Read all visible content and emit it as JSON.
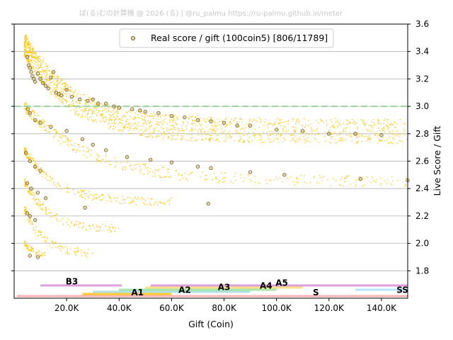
{
  "watermark": "ぱ(る)むの計算機 @ 2026 (る) | @ru_palmu  https://ru-palmu.github.io/meter",
  "chart_data": {
    "type": "scatter",
    "title": "",
    "xlabel": "Gift (Coin)",
    "ylabel": "Live Score / Gift",
    "xlim": [
      0,
      150000
    ],
    "ylim": [
      1.6,
      3.6
    ],
    "x_ticks": [
      20000,
      40000,
      60000,
      80000,
      100000,
      120000,
      140000
    ],
    "x_tick_labels": [
      "20.0K",
      "40.0K",
      "60.0K",
      "80.0K",
      "100.0K",
      "120.0K",
      "140.0K"
    ],
    "y_ticks": [
      1.8,
      2.0,
      2.2,
      2.4,
      2.6,
      2.8,
      3.0,
      3.2,
      3.4,
      3.6
    ],
    "y_tick_labels": [
      "1.8",
      "2.0",
      "2.2",
      "2.4",
      "2.6",
      "2.8",
      "3.0",
      "3.2",
      "3.4",
      "3.6"
    ],
    "y_axis_side": "right",
    "grid": "horizontal",
    "legend": {
      "position": "top-center",
      "label": "Real score / gift (100coin5) [806/11789]"
    },
    "reference_line": {
      "y": 3.0,
      "style": "dashed",
      "color": "#9bd49b"
    },
    "colors": {
      "background_points": "#ffc400",
      "real_points_edge": "#5a4a20"
    },
    "series": [
      {
        "name": "Real score / gift (100coin5) [806/11789]",
        "marker": "circle-hollow",
        "points": [
          [
            5000,
            3.36
          ],
          [
            5500,
            3.3
          ],
          [
            6000,
            3.28
          ],
          [
            6500,
            3.25
          ],
          [
            7000,
            3.22
          ],
          [
            7500,
            3.2
          ],
          [
            8000,
            3.18
          ],
          [
            9000,
            3.24
          ],
          [
            10000,
            3.2
          ],
          [
            11000,
            3.17
          ],
          [
            12000,
            3.15
          ],
          [
            13000,
            3.13
          ],
          [
            14000,
            3.21
          ],
          [
            15000,
            3.25
          ],
          [
            16000,
            3.1
          ],
          [
            17000,
            3.09
          ],
          [
            18000,
            3.08
          ],
          [
            20000,
            3.12
          ],
          [
            22000,
            3.07
          ],
          [
            25000,
            3.05
          ],
          [
            28000,
            3.04
          ],
          [
            30000,
            3.05
          ],
          [
            32000,
            3.02
          ],
          [
            35000,
            3.02
          ],
          [
            38000,
            3.0
          ],
          [
            40000,
            2.99
          ],
          [
            45000,
            2.98
          ],
          [
            48000,
            2.97
          ],
          [
            50000,
            2.96
          ],
          [
            55000,
            2.95
          ],
          [
            60000,
            2.93
          ],
          [
            65000,
            2.92
          ],
          [
            70000,
            2.9
          ],
          [
            75000,
            2.89
          ],
          [
            80000,
            2.88
          ],
          [
            85000,
            2.86
          ],
          [
            90000,
            2.86
          ],
          [
            100000,
            2.83
          ],
          [
            110000,
            2.82
          ],
          [
            120000,
            2.8
          ],
          [
            130000,
            2.8
          ],
          [
            140000,
            2.79
          ],
          [
            5200,
            2.98
          ],
          [
            6000,
            2.95
          ],
          [
            8000,
            2.9
          ],
          [
            10000,
            2.88
          ],
          [
            14000,
            2.85
          ],
          [
            20000,
            2.82
          ],
          [
            26000,
            2.76
          ],
          [
            30000,
            2.72
          ],
          [
            35000,
            2.68
          ],
          [
            43000,
            2.63
          ],
          [
            52000,
            2.61
          ],
          [
            60000,
            2.59
          ],
          [
            70000,
            2.56
          ],
          [
            75000,
            2.55
          ],
          [
            90000,
            2.52
          ],
          [
            103000,
            2.5
          ],
          [
            132000,
            2.47
          ],
          [
            150000,
            2.46
          ],
          [
            4500,
            2.66
          ],
          [
            6000,
            2.6
          ],
          [
            8000,
            2.56
          ],
          [
            10000,
            2.53
          ],
          [
            5000,
            2.44
          ],
          [
            6500,
            2.4
          ],
          [
            9000,
            2.37
          ],
          [
            12000,
            2.33
          ],
          [
            5000,
            2.22
          ],
          [
            6000,
            2.2
          ],
          [
            8000,
            2.17
          ],
          [
            6000,
            1.91
          ],
          [
            9000,
            1.9
          ],
          [
            27000,
            2.26
          ],
          [
            74000,
            2.29
          ]
        ]
      }
    ],
    "background_density": {
      "description_bands": [
        {
          "x_range": [
            4000,
            150000
          ],
          "y_from": 3.45,
          "y_to": 2.8,
          "density": "high"
        },
        {
          "x_range": [
            4000,
            150000
          ],
          "y_from": 3.0,
          "y_to": 2.45,
          "density": "medium"
        },
        {
          "x_range": [
            4000,
            60000
          ],
          "y_from": 2.7,
          "y_to": 2.3,
          "density": "low"
        },
        {
          "x_range": [
            4000,
            40000
          ],
          "y_from": 2.45,
          "y_to": 2.1,
          "density": "low"
        },
        {
          "x_range": [
            4000,
            30000
          ],
          "y_from": 2.25,
          "y_to": 1.9,
          "density": "low"
        },
        {
          "x_range": [
            4000,
            12000
          ],
          "y_from": 2.0,
          "y_to": 1.9,
          "density": "low"
        }
      ]
    },
    "rank_bands": [
      {
        "label": "B3",
        "x_start": 10000,
        "x_end": 41000,
        "color": "#dda0dd",
        "row": 0
      },
      {
        "label": "A5",
        "x_start": 52000,
        "x_end": 150000,
        "color": "#dda0dd",
        "row": 0
      },
      {
        "label": "A4",
        "x_start": 50000,
        "x_end": 110000,
        "color": "#ffe08a",
        "row": 1
      },
      {
        "label": "A3",
        "x_start": 40000,
        "x_end": 100000,
        "color": "#a8e6a8",
        "row": 2
      },
      {
        "label": "A2",
        "x_start": 30000,
        "x_end": 90000,
        "color": "#b0e0e6",
        "row": 3
      },
      {
        "label": "A1",
        "x_start": 26000,
        "x_end": 60000,
        "color": "#ffcc33",
        "row": 4
      },
      {
        "label": "S",
        "x_start": 1000,
        "x_end": 150000,
        "color": "#ffb3b3",
        "row": 5
      },
      {
        "label": "SS",
        "x_start": 130000,
        "x_end": 150000,
        "color": "#b3e6ff",
        "row": 2
      }
    ],
    "rank_label_positions": {
      "B3": [
        22000,
        1.7
      ],
      "A1": [
        47000,
        1.62
      ],
      "A2": [
        65000,
        1.64
      ],
      "A3": [
        80000,
        1.66
      ],
      "A4": [
        96000,
        1.67
      ],
      "A5": [
        102000,
        1.69
      ],
      "S": [
        115000,
        1.62
      ],
      "SS": [
        148000,
        1.64
      ]
    }
  }
}
